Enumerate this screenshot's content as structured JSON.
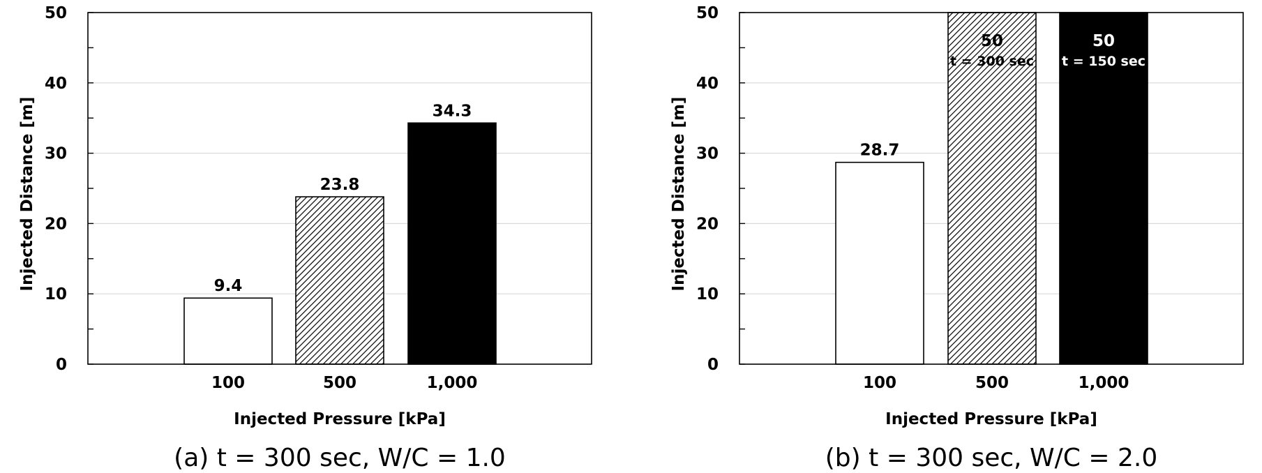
{
  "chart_data": [
    {
      "type": "bar",
      "caption": "(a) t = 300 sec, W/C = 1.0",
      "xlabel": "Injected Pressure [kPa]",
      "ylabel": "Injected Distance [m]",
      "categories": [
        "100",
        "500",
        "1,000"
      ],
      "values": [
        9.4,
        23.8,
        34.3
      ],
      "data_labels": [
        "9.4",
        "23.8",
        "34.3"
      ],
      "data_sublabels": [
        "",
        "",
        ""
      ],
      "bar_styles": [
        "white",
        "hatched",
        "black"
      ],
      "ylim": [
        0,
        50
      ],
      "yticks": [
        "0",
        "10",
        "20",
        "30",
        "40",
        "50"
      ],
      "grid": true
    },
    {
      "type": "bar",
      "caption": "(b) t = 300 sec, W/C = 2.0",
      "xlabel": "Injected Pressure [kPa]",
      "ylabel": "Injected Distance [m]",
      "categories": [
        "100",
        "500",
        "1,000"
      ],
      "values": [
        28.7,
        50,
        50
      ],
      "data_labels": [
        "28.7",
        "50",
        "50"
      ],
      "data_sublabels": [
        "",
        "t = 300 sec",
        "t = 150 sec"
      ],
      "bar_styles": [
        "white",
        "hatched",
        "black"
      ],
      "ylim": [
        0,
        50
      ],
      "yticks": [
        "0",
        "10",
        "20",
        "30",
        "40",
        "50"
      ],
      "grid": true
    }
  ],
  "colors": {
    "bar_white": "#ffffff",
    "bar_hatched_line": "#000000",
    "bar_black": "#000000",
    "grid": "#d9d9d9",
    "axis": "#000000"
  }
}
